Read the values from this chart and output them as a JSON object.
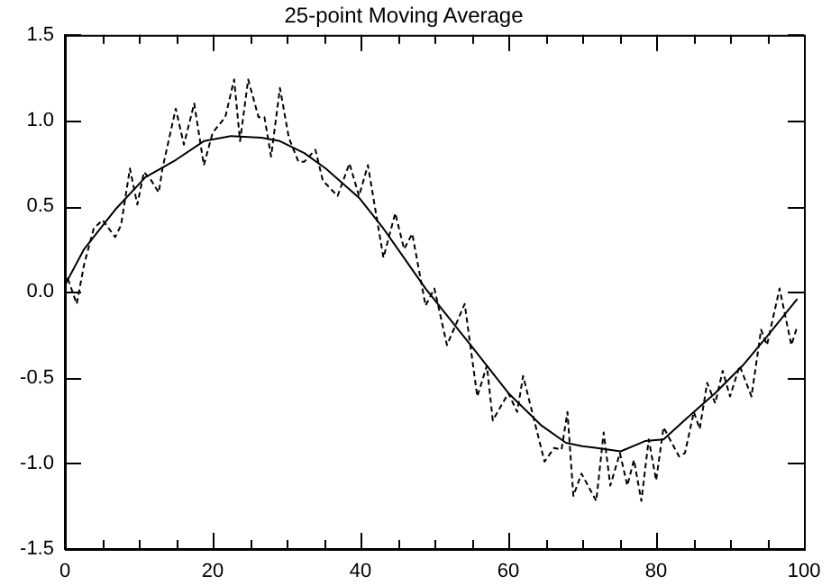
{
  "chart_data": {
    "type": "line",
    "title": "25-point Moving Average",
    "xlim": [
      0,
      100
    ],
    "xticks": [
      0,
      {
        "value": 5,
        "label": null
      },
      {
        "value": 10,
        "label": null
      },
      {
        "value": 15,
        "label": null
      },
      20,
      {
        "value": 25,
        "label": null
      },
      {
        "value": 30,
        "label": null
      },
      {
        "value": 35,
        "label": null
      },
      40,
      {
        "value": 45,
        "label": null
      },
      {
        "value": 50,
        "label": null
      },
      {
        "value": 55,
        "label": null
      },
      60,
      {
        "value": 65,
        "label": null
      },
      {
        "value": 70,
        "label": null
      },
      {
        "value": 75,
        "label": null
      },
      80,
      {
        "value": 85,
        "label": null
      },
      {
        "value": 90,
        "label": null
      },
      {
        "value": 95,
        "label": null
      },
      100
    ],
    "ylim": [
      -1.5,
      1.5
    ],
    "yticks": [
      {
        "value": -1.5,
        "label": "-1.5"
      },
      {
        "value": -1,
        "label": "-1.0"
      },
      {
        "value": -0.5,
        "label": "-0.5"
      },
      {
        "value": 0,
        "label": "0.0"
      },
      {
        "value": 0.5,
        "label": "0.5"
      },
      {
        "value": 1,
        "label": "1.0"
      },
      {
        "value": 1.5,
        "label": "1.5"
      }
    ],
    "grid": false,
    "legend": false,
    "marker": "none",
    "series": [
      {
        "color": "#000000",
        "line_style": "dashed",
        "x": [
          0,
          0.3,
          1.6,
          2.6,
          3.9,
          5.1,
          6.8,
          7.6,
          8.8,
          9.8,
          10.7,
          11.7,
          12.7,
          13.2,
          15,
          16.1,
          17.5,
          18.8,
          20,
          21.7,
          22.9,
          23.7,
          24.8,
          26.2,
          27,
          27.9,
          29.1,
          30.3,
          31.6,
          32.4,
          33.9,
          34.9,
          36.9,
          38.5,
          39.8,
          41,
          43.1,
          44.7,
          45.9,
          47,
          48.8,
          50,
          51.7,
          54.1,
          55.8,
          57.1,
          57.9,
          60,
          61.2,
          62,
          64.9,
          66.2,
          67.2,
          68,
          68.8,
          69.9,
          71.9,
          72.9,
          73.8,
          75.1,
          76.1,
          77,
          78,
          79,
          80,
          81,
          83.1,
          83.9,
          85.1,
          85.9,
          86.9,
          88,
          89,
          90,
          91.3,
          92.9,
          94.2,
          95,
          96.7,
          98.3,
          99.1
        ],
        "values": [
          0,
          0.09,
          -0.07,
          0.16,
          0.37,
          0.42,
          0.32,
          0.39,
          0.72,
          0.51,
          0.7,
          0.65,
          0.58,
          0.72,
          1.07,
          0.86,
          1.1,
          0.74,
          0.93,
          1.02,
          1.24,
          0.88,
          1.24,
          1.02,
          1.02,
          0.79,
          1.19,
          0.9,
          0.76,
          0.76,
          0.83,
          0.65,
          0.56,
          0.75,
          0.56,
          0.74,
          0.2,
          0.46,
          0.25,
          0.34,
          -0.08,
          0.02,
          -0.31,
          -0.07,
          -0.61,
          -0.43,
          -0.75,
          -0.59,
          -0.7,
          -0.49,
          -0.99,
          -0.91,
          -0.92,
          -0.7,
          -1.19,
          -1.06,
          -1.22,
          -0.82,
          -1.13,
          -0.94,
          -1.13,
          -0.98,
          -1.22,
          -0.86,
          -1.1,
          -0.79,
          -0.96,
          -0.94,
          -0.7,
          -0.8,
          -0.53,
          -0.65,
          -0.46,
          -0.61,
          -0.43,
          -0.61,
          -0.22,
          -0.31,
          0.02,
          -0.31,
          -0.2
        ]
      },
      {
        "color": "#000000",
        "line_style": "solid",
        "x": [
          0,
          2.6,
          6.8,
          10.9,
          15,
          18.8,
          22.5,
          26.6,
          29.1,
          32.4,
          35.3,
          39.8,
          43.1,
          48.8,
          54.9,
          60,
          64.5,
          67.8,
          70,
          72,
          75.2,
          78.5,
          81,
          85.1,
          88,
          91.7,
          95,
          99.1
        ],
        "values": [
          0.04,
          0.25,
          0.48,
          0.67,
          0.77,
          0.88,
          0.91,
          0.9,
          0.88,
          0.81,
          0.72,
          0.55,
          0.37,
          0.02,
          -0.31,
          -0.59,
          -0.78,
          -0.88,
          -0.9,
          -0.91,
          -0.93,
          -0.87,
          -0.86,
          -0.7,
          -0.59,
          -0.43,
          -0.26,
          -0.04
        ]
      }
    ]
  }
}
